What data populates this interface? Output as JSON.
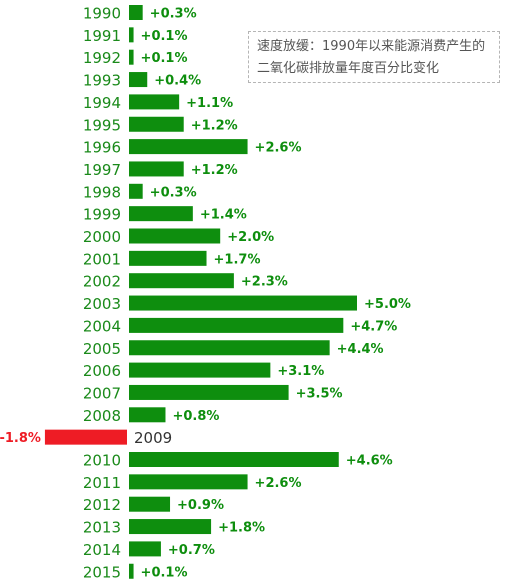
{
  "chart_data": {
    "type": "bar",
    "orientation": "horizontal",
    "title": "",
    "annotation": "速度放缓：1990年以来能源消费产生的二氧化碳排放量年度百分比变化",
    "categories": [
      "1990",
      "1991",
      "1992",
      "1993",
      "1994",
      "1995",
      "1996",
      "1997",
      "1998",
      "1999",
      "2000",
      "2001",
      "2002",
      "2003",
      "2004",
      "2005",
      "2006",
      "2007",
      "2008",
      "2009",
      "2010",
      "2011",
      "2012",
      "2013",
      "2014",
      "2015"
    ],
    "values": [
      0.3,
      0.1,
      0.1,
      0.4,
      1.1,
      1.2,
      2.6,
      1.2,
      0.3,
      1.4,
      2.0,
      1.7,
      2.3,
      5.0,
      4.7,
      4.4,
      3.1,
      3.5,
      0.8,
      -1.8,
      4.6,
      2.6,
      0.9,
      1.8,
      0.7,
      0.1
    ],
    "labels": [
      "+0.3%",
      "+0.1%",
      "+0.1%",
      "+0.4%",
      "+1.1%",
      "+1.2%",
      "+2.6%",
      "+1.2%",
      "+0.3%",
      "+1.4%",
      "+2.0%",
      "+1.7%",
      "+2.3%",
      "+5.0%",
      "+4.7%",
      "+4.4%",
      "+3.1%",
      "+3.5%",
      "+0.8%",
      "-1.8%",
      "+4.6%",
      "+2.6%",
      "+0.9%",
      "+1.8%",
      "+0.7%",
      "+0.1%"
    ],
    "colors": {
      "positive": "#0e8e0e",
      "negative": "#ee1c25",
      "year_text": "#1a8a1a",
      "negative_label": "#ee1c25"
    },
    "xlim": [
      -1.8,
      5.0
    ],
    "grid": false,
    "legend": "none"
  }
}
